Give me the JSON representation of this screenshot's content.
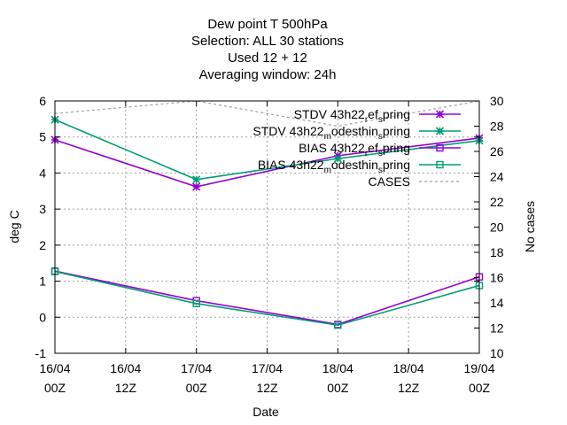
{
  "chart_data": {
    "type": "line",
    "title_lines": [
      "Dew point T 500hPa",
      "Selection: ALL      30 stations",
      "Used  12  + 12",
      "Averaging window: 24h"
    ],
    "xlabel": "Date",
    "ylabel": "deg C",
    "y2label": "No cases",
    "x_ticks": [
      {
        "line1": "16/04",
        "line2": "00Z",
        "x": 0
      },
      {
        "line1": "16/04",
        "line2": "12Z",
        "x": 12
      },
      {
        "line1": "17/04",
        "line2": "00Z",
        "x": 24
      },
      {
        "line1": "17/04",
        "line2": "12Z",
        "x": 36
      },
      {
        "line1": "18/04",
        "line2": "00Z",
        "x": 48
      },
      {
        "line1": "18/04",
        "line2": "12Z",
        "x": 60
      },
      {
        "line1": "19/04",
        "line2": "00Z",
        "x": 72
      }
    ],
    "xlim": [
      0,
      72
    ],
    "ylim": [
      -1,
      6
    ],
    "y_ticks": [
      -1,
      0,
      1,
      2,
      3,
      4,
      5,
      6
    ],
    "y2lim": [
      10,
      30
    ],
    "y2_ticks": [
      10,
      12,
      14,
      16,
      18,
      20,
      22,
      24,
      26,
      28,
      30
    ],
    "grid": true,
    "legend_position": "top-right",
    "series": [
      {
        "label_main": "STDV 43h22",
        "label_parts": [
          "r",
          "ef",
          "s",
          "pring"
        ],
        "color": "#9400d3",
        "marker": "star",
        "axis": "y1",
        "x": [
          0,
          24,
          48,
          72
        ],
        "values": [
          4.92,
          3.62,
          4.48,
          4.97
        ]
      },
      {
        "label_main": "STDV 43h22",
        "label_parts": [
          "m",
          "odesthin",
          "s",
          "pring"
        ],
        "color": "#009e73",
        "marker": "star",
        "axis": "y1",
        "x": [
          0,
          24,
          48,
          72
        ],
        "values": [
          5.48,
          3.82,
          4.4,
          4.9
        ]
      },
      {
        "label_main": "BIAS 43h22",
        "label_parts": [
          "r",
          "ef",
          "s",
          "pring"
        ],
        "color": "#9400d3",
        "marker": "square",
        "axis": "y1",
        "x": [
          0,
          24,
          48,
          72
        ],
        "values": [
          1.28,
          0.46,
          -0.2,
          1.12
        ]
      },
      {
        "label_main": "BIAS 43h22",
        "label_parts": [
          "m",
          "odesthin",
          "s",
          "pring"
        ],
        "color": "#009e73",
        "marker": "square",
        "axis": "y1",
        "x": [
          0,
          24,
          48,
          72
        ],
        "values": [
          1.27,
          0.38,
          -0.22,
          0.88
        ]
      },
      {
        "label_main": "CASES",
        "label_parts": [],
        "color": "#a0a0a0",
        "marker": "none",
        "dashed": true,
        "axis": "y2",
        "x": [
          0,
          24,
          48,
          72
        ],
        "values": [
          29,
          30,
          28,
          30
        ]
      }
    ]
  }
}
